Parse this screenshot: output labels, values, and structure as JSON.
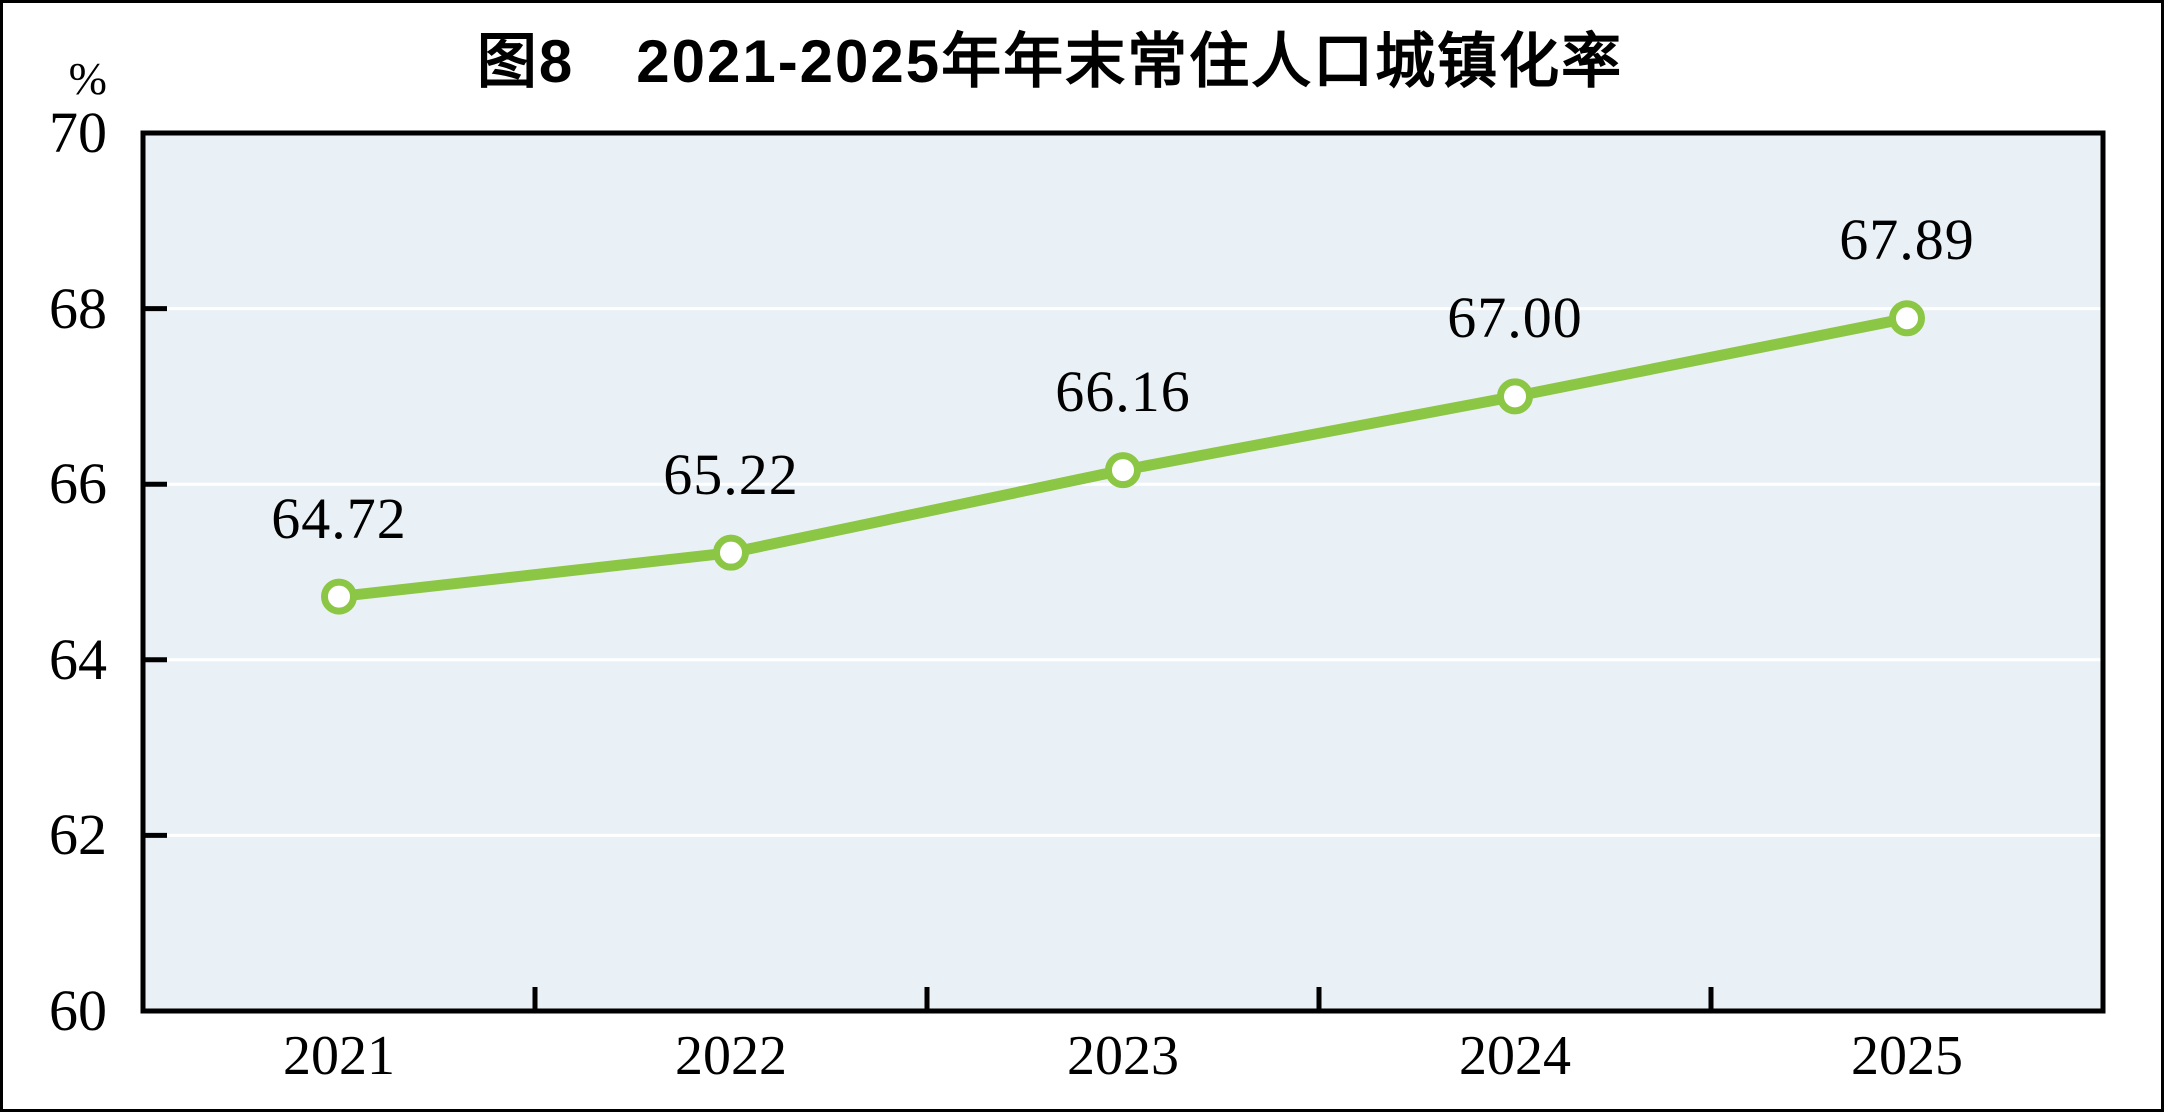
{
  "figure": {
    "title": "图8　2021-2025年年末常住人口城镇化率",
    "unit_label": "%"
  },
  "chart_data": {
    "type": "line",
    "title": "图8　2021-2025年年末常住人口城镇化率",
    "ylabel_unit": "%",
    "categories": [
      "2021",
      "2022",
      "2023",
      "2024",
      "2025"
    ],
    "values": [
      64.72,
      65.22,
      66.16,
      67.0,
      67.89
    ],
    "point_labels": [
      "64.72",
      "65.22",
      "66.16",
      "67.00",
      "67.89"
    ],
    "ylim": [
      60,
      70
    ],
    "yticks": [
      60,
      62,
      64,
      66,
      68,
      70
    ],
    "ytick_labels": [
      "60",
      "62",
      "64",
      "66",
      "68",
      "70"
    ],
    "grid": "horizontal-every-2-units",
    "legend": "none",
    "colors": {
      "line": "#8CC645",
      "marker_fill": "#FFFFFF",
      "marker_ring": "#8CC645",
      "plot_background": "#EAF1F6",
      "gridline": "#FFFFFF",
      "frame": "#000000",
      "text": "#000000"
    }
  }
}
